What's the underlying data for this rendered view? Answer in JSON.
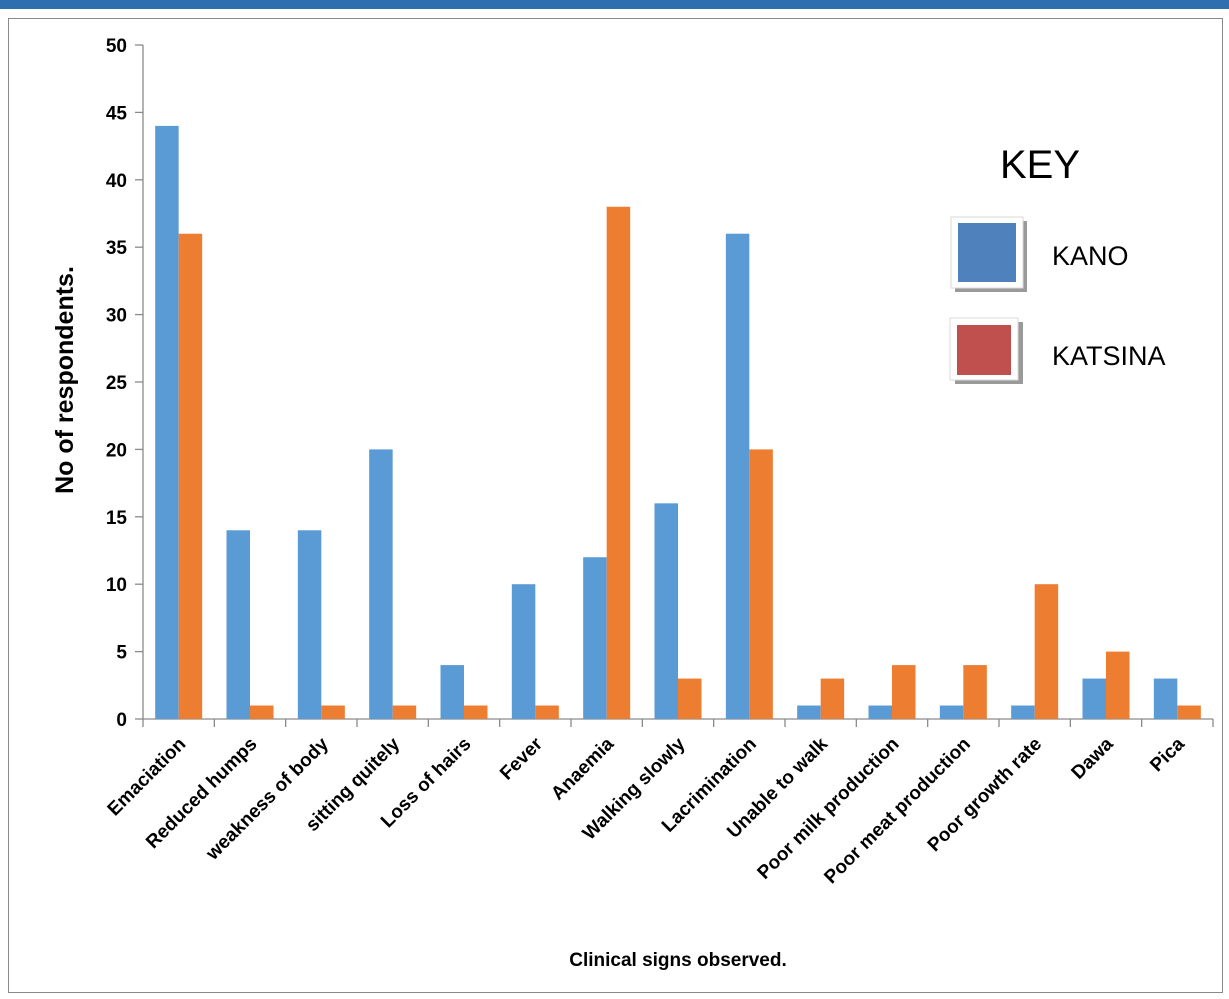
{
  "colors": {
    "page_rule": "#2e6fb0",
    "frame_border": "#8a8a8a",
    "axis": "#8a8a8a",
    "kano_bar": "#5b9bd5",
    "katsina_bar": "#ed7d31",
    "key_kano_swatch": "#4f81bd",
    "key_katsina_swatch": "#c0504d"
  },
  "legend_key": {
    "title": "KEY",
    "placement": "right",
    "items": [
      {
        "label": "KANO",
        "color": "#4f81bd"
      },
      {
        "label": "KATSINA",
        "color": "#c0504d"
      }
    ]
  },
  "chart_data": {
    "type": "bar",
    "title": "",
    "xlabel": "Clinical signs observed.",
    "ylabel": "No  of  respondents.",
    "ylim": [
      0,
      50
    ],
    "ytick_step": 5,
    "grid": false,
    "categories": [
      "Emaciation",
      "Reduced humps",
      "weakness of body",
      "sitting quitely",
      "Loss of hairs",
      "Fever",
      "Anaemia",
      "Walking slowly",
      "Lacrimination",
      "Unable to walk",
      "Poor milk production",
      "Poor meat production",
      "Poor growth rate",
      "Dawa",
      "Pica"
    ],
    "series": [
      {
        "name": "KANO",
        "color": "#5b9bd5",
        "values": [
          44,
          14,
          14,
          20,
          4,
          10,
          12,
          16,
          36,
          1,
          1,
          1,
          1,
          3,
          3
        ]
      },
      {
        "name": "KATSINA",
        "color": "#ed7d31",
        "values": [
          36,
          1,
          1,
          1,
          1,
          1,
          38,
          3,
          20,
          3,
          4,
          4,
          10,
          5,
          1
        ]
      }
    ]
  }
}
